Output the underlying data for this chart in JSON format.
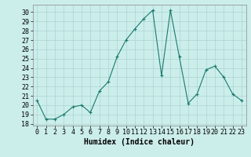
{
  "x": [
    0,
    1,
    2,
    3,
    4,
    5,
    6,
    7,
    8,
    9,
    10,
    11,
    12,
    13,
    14,
    15,
    16,
    17,
    18,
    19,
    20,
    21,
    22,
    23
  ],
  "y": [
    20.5,
    18.5,
    18.5,
    19.0,
    19.8,
    20.0,
    19.2,
    21.5,
    22.5,
    25.2,
    27.0,
    28.2,
    29.3,
    30.2,
    23.2,
    30.2,
    25.2,
    20.2,
    21.2,
    23.8,
    24.2,
    23.0,
    21.2,
    20.5
  ],
  "line_color": "#1a7a6e",
  "marker": "+",
  "marker_size": 3,
  "marker_edge_width": 0.8,
  "bg_color": "#cceeeb",
  "grid_color": "#aad4d0",
  "xlabel": "Humidex (Indice chaleur)",
  "xlim": [
    -0.5,
    23.5
  ],
  "ylim": [
    17.8,
    30.8
  ],
  "yticks": [
    18,
    19,
    20,
    21,
    22,
    23,
    24,
    25,
    26,
    27,
    28,
    29,
    30
  ],
  "xticks": [
    0,
    1,
    2,
    3,
    4,
    5,
    6,
    7,
    8,
    9,
    10,
    11,
    12,
    13,
    14,
    15,
    16,
    17,
    18,
    19,
    20,
    21,
    22,
    23
  ],
  "tick_fontsize": 6,
  "xlabel_fontsize": 7,
  "linewidth": 0.8
}
